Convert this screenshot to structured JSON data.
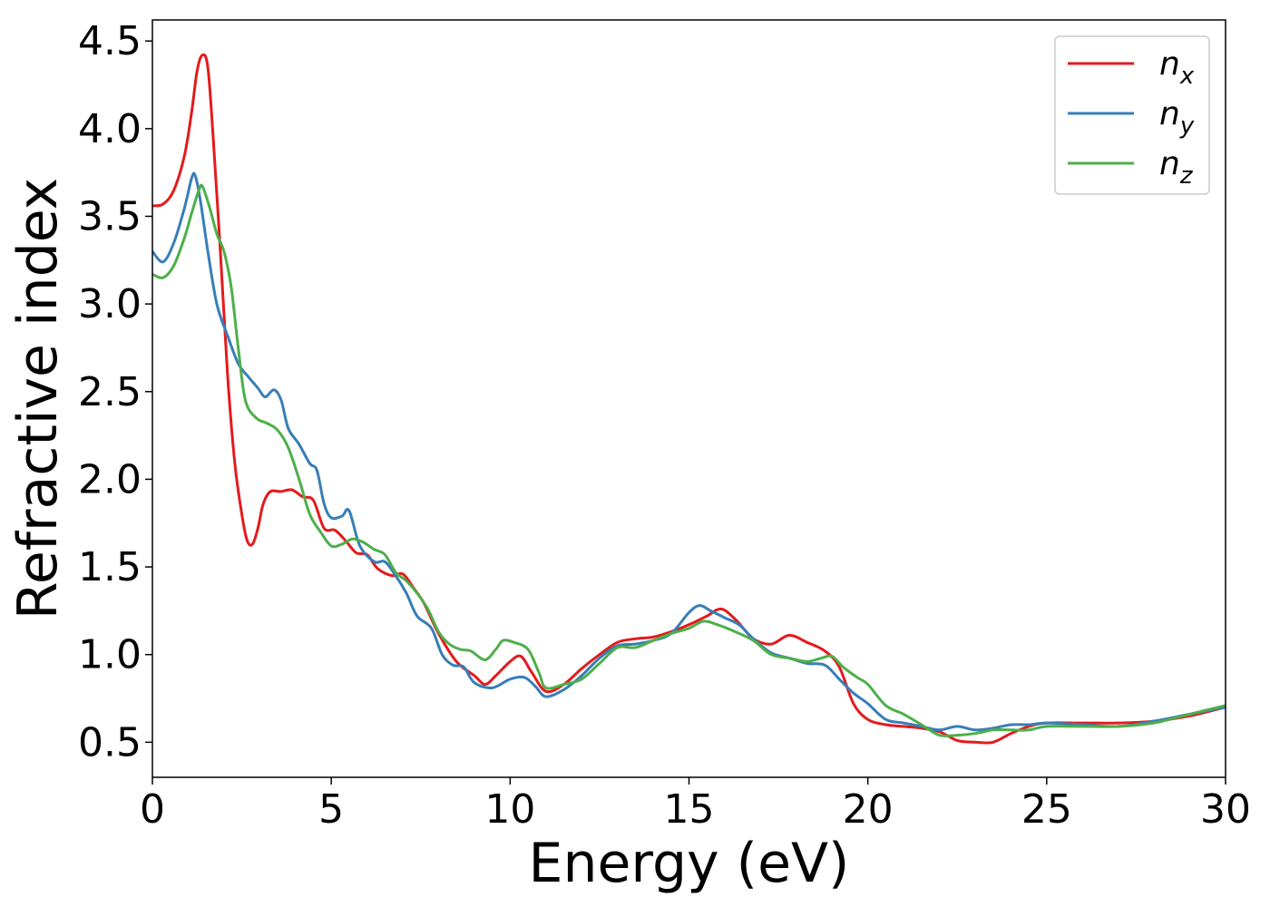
{
  "chart_data": {
    "type": "line",
    "title": "",
    "xlabel": "Energy (eV)",
    "ylabel": "Refractive index",
    "xlim": [
      0,
      30
    ],
    "ylim": [
      0.3,
      4.62
    ],
    "xticks": [
      0,
      5,
      10,
      15,
      20,
      25,
      30
    ],
    "xtick_labels": [
      "0",
      "5",
      "10",
      "15",
      "20",
      "25",
      "30"
    ],
    "yticks": [
      0.5,
      1.0,
      1.5,
      2.0,
      2.5,
      3.0,
      3.5,
      4.0,
      4.5
    ],
    "ytick_labels": [
      "0.5",
      "1.0",
      "1.5",
      "2.0",
      "2.5",
      "3.0",
      "3.5",
      "4.0",
      "4.5"
    ],
    "grid": false,
    "legend": {
      "position": "top-right"
    },
    "series": [
      {
        "name": "n",
        "subscript": "x",
        "color": "#e41a1c",
        "points": [
          [
            0,
            3.56
          ],
          [
            0.3,
            3.57
          ],
          [
            0.6,
            3.65
          ],
          [
            0.9,
            3.85
          ],
          [
            1.1,
            4.1
          ],
          [
            1.25,
            4.33
          ],
          [
            1.4,
            4.42
          ],
          [
            1.55,
            4.35
          ],
          [
            1.7,
            3.95
          ],
          [
            1.9,
            3.3
          ],
          [
            2.1,
            2.6
          ],
          [
            2.3,
            2.1
          ],
          [
            2.5,
            1.8
          ],
          [
            2.65,
            1.65
          ],
          [
            2.8,
            1.63
          ],
          [
            2.95,
            1.72
          ],
          [
            3.1,
            1.86
          ],
          [
            3.3,
            1.93
          ],
          [
            3.6,
            1.93
          ],
          [
            3.9,
            1.94
          ],
          [
            4.2,
            1.9
          ],
          [
            4.5,
            1.88
          ],
          [
            4.8,
            1.72
          ],
          [
            5.1,
            1.71
          ],
          [
            5.4,
            1.65
          ],
          [
            5.7,
            1.58
          ],
          [
            6.0,
            1.57
          ],
          [
            6.3,
            1.49
          ],
          [
            6.7,
            1.45
          ],
          [
            7.0,
            1.46
          ],
          [
            7.3,
            1.38
          ],
          [
            7.6,
            1.29
          ],
          [
            8.0,
            1.12
          ],
          [
            8.5,
            0.96
          ],
          [
            9.0,
            0.88
          ],
          [
            9.3,
            0.83
          ],
          [
            9.6,
            0.88
          ],
          [
            10.0,
            0.96
          ],
          [
            10.3,
            0.99
          ],
          [
            10.6,
            0.9
          ],
          [
            11.0,
            0.79
          ],
          [
            11.5,
            0.83
          ],
          [
            12.0,
            0.92
          ],
          [
            12.5,
            1.0
          ],
          [
            13.0,
            1.07
          ],
          [
            13.5,
            1.09
          ],
          [
            14.0,
            1.1
          ],
          [
            14.5,
            1.13
          ],
          [
            15.0,
            1.17
          ],
          [
            15.5,
            1.22
          ],
          [
            15.9,
            1.26
          ],
          [
            16.3,
            1.2
          ],
          [
            16.8,
            1.09
          ],
          [
            17.3,
            1.06
          ],
          [
            17.8,
            1.11
          ],
          [
            18.3,
            1.07
          ],
          [
            18.8,
            1.02
          ],
          [
            19.2,
            0.93
          ],
          [
            19.6,
            0.72
          ],
          [
            20.0,
            0.63
          ],
          [
            20.5,
            0.6
          ],
          [
            21.0,
            0.59
          ],
          [
            21.5,
            0.58
          ],
          [
            22.0,
            0.56
          ],
          [
            22.5,
            0.51
          ],
          [
            23.0,
            0.5
          ],
          [
            23.5,
            0.5
          ],
          [
            24.0,
            0.55
          ],
          [
            24.5,
            0.59
          ],
          [
            25.0,
            0.61
          ],
          [
            26.0,
            0.61
          ],
          [
            27.0,
            0.61
          ],
          [
            28.0,
            0.62
          ],
          [
            29.0,
            0.65
          ],
          [
            30.0,
            0.7
          ]
        ]
      },
      {
        "name": "n",
        "subscript": "y",
        "color": "#377eb8",
        "points": [
          [
            0,
            3.3
          ],
          [
            0.3,
            3.24
          ],
          [
            0.6,
            3.35
          ],
          [
            0.9,
            3.55
          ],
          [
            1.1,
            3.72
          ],
          [
            1.2,
            3.73
          ],
          [
            1.35,
            3.58
          ],
          [
            1.55,
            3.3
          ],
          [
            1.8,
            3.0
          ],
          [
            2.1,
            2.82
          ],
          [
            2.4,
            2.66
          ],
          [
            2.7,
            2.58
          ],
          [
            2.95,
            2.52
          ],
          [
            3.15,
            2.47
          ],
          [
            3.4,
            2.51
          ],
          [
            3.6,
            2.45
          ],
          [
            3.8,
            2.29
          ],
          [
            4.1,
            2.2
          ],
          [
            4.4,
            2.09
          ],
          [
            4.6,
            2.05
          ],
          [
            4.8,
            1.86
          ],
          [
            5.0,
            1.78
          ],
          [
            5.3,
            1.79
          ],
          [
            5.5,
            1.82
          ],
          [
            5.8,
            1.62
          ],
          [
            6.2,
            1.53
          ],
          [
            6.5,
            1.53
          ],
          [
            6.8,
            1.45
          ],
          [
            7.1,
            1.35
          ],
          [
            7.4,
            1.22
          ],
          [
            7.8,
            1.15
          ],
          [
            8.1,
            1.0
          ],
          [
            8.4,
            0.94
          ],
          [
            8.7,
            0.93
          ],
          [
            9.0,
            0.84
          ],
          [
            9.5,
            0.81
          ],
          [
            10.0,
            0.86
          ],
          [
            10.4,
            0.87
          ],
          [
            10.7,
            0.82
          ],
          [
            11.0,
            0.76
          ],
          [
            11.5,
            0.8
          ],
          [
            12.0,
            0.88
          ],
          [
            12.5,
            0.98
          ],
          [
            13.0,
            1.05
          ],
          [
            13.5,
            1.06
          ],
          [
            14.0,
            1.08
          ],
          [
            14.5,
            1.12
          ],
          [
            15.0,
            1.24
          ],
          [
            15.3,
            1.28
          ],
          [
            15.6,
            1.25
          ],
          [
            16.0,
            1.21
          ],
          [
            16.4,
            1.17
          ],
          [
            16.8,
            1.09
          ],
          [
            17.3,
            1.01
          ],
          [
            17.8,
            0.98
          ],
          [
            18.3,
            0.95
          ],
          [
            18.8,
            0.94
          ],
          [
            19.2,
            0.86
          ],
          [
            19.6,
            0.78
          ],
          [
            20.0,
            0.72
          ],
          [
            20.5,
            0.63
          ],
          [
            21.0,
            0.61
          ],
          [
            21.5,
            0.59
          ],
          [
            22.0,
            0.57
          ],
          [
            22.5,
            0.59
          ],
          [
            23.0,
            0.57
          ],
          [
            23.5,
            0.58
          ],
          [
            24.0,
            0.6
          ],
          [
            24.5,
            0.6
          ],
          [
            25.0,
            0.61
          ],
          [
            26.0,
            0.6
          ],
          [
            27.0,
            0.59
          ],
          [
            28.0,
            0.62
          ],
          [
            29.0,
            0.66
          ],
          [
            30.0,
            0.7
          ]
        ]
      },
      {
        "name": "n",
        "subscript": "z",
        "color": "#4daf4a",
        "points": [
          [
            0,
            3.17
          ],
          [
            0.3,
            3.15
          ],
          [
            0.6,
            3.22
          ],
          [
            0.9,
            3.38
          ],
          [
            1.1,
            3.52
          ],
          [
            1.3,
            3.65
          ],
          [
            1.4,
            3.67
          ],
          [
            1.6,
            3.55
          ],
          [
            1.8,
            3.4
          ],
          [
            2.0,
            3.3
          ],
          [
            2.2,
            3.1
          ],
          [
            2.4,
            2.75
          ],
          [
            2.6,
            2.45
          ],
          [
            2.9,
            2.35
          ],
          [
            3.2,
            2.32
          ],
          [
            3.5,
            2.28
          ],
          [
            3.8,
            2.18
          ],
          [
            4.1,
            2.0
          ],
          [
            4.4,
            1.8
          ],
          [
            4.7,
            1.7
          ],
          [
            5.0,
            1.62
          ],
          [
            5.3,
            1.63
          ],
          [
            5.6,
            1.66
          ],
          [
            5.9,
            1.64
          ],
          [
            6.2,
            1.6
          ],
          [
            6.5,
            1.57
          ],
          [
            6.8,
            1.47
          ],
          [
            7.1,
            1.42
          ],
          [
            7.4,
            1.35
          ],
          [
            7.7,
            1.26
          ],
          [
            8.0,
            1.13
          ],
          [
            8.3,
            1.06
          ],
          [
            8.6,
            1.03
          ],
          [
            8.9,
            1.02
          ],
          [
            9.3,
            0.97
          ],
          [
            9.6,
            1.03
          ],
          [
            9.8,
            1.08
          ],
          [
            10.1,
            1.07
          ],
          [
            10.5,
            1.03
          ],
          [
            10.8,
            0.9
          ],
          [
            11.0,
            0.81
          ],
          [
            11.5,
            0.83
          ],
          [
            12.0,
            0.86
          ],
          [
            12.5,
            0.95
          ],
          [
            13.0,
            1.04
          ],
          [
            13.5,
            1.04
          ],
          [
            14.0,
            1.08
          ],
          [
            14.5,
            1.12
          ],
          [
            15.0,
            1.15
          ],
          [
            15.4,
            1.19
          ],
          [
            15.8,
            1.17
          ],
          [
            16.3,
            1.13
          ],
          [
            16.8,
            1.08
          ],
          [
            17.3,
            1.0
          ],
          [
            17.8,
            0.98
          ],
          [
            18.3,
            0.96
          ],
          [
            18.7,
            0.98
          ],
          [
            19.0,
            0.99
          ],
          [
            19.3,
            0.93
          ],
          [
            19.7,
            0.87
          ],
          [
            20.0,
            0.83
          ],
          [
            20.5,
            0.71
          ],
          [
            21.0,
            0.66
          ],
          [
            21.5,
            0.6
          ],
          [
            22.0,
            0.54
          ],
          [
            22.5,
            0.54
          ],
          [
            23.0,
            0.55
          ],
          [
            23.5,
            0.57
          ],
          [
            24.0,
            0.57
          ],
          [
            24.5,
            0.57
          ],
          [
            25.0,
            0.59
          ],
          [
            26.0,
            0.59
          ],
          [
            27.0,
            0.59
          ],
          [
            28.0,
            0.61
          ],
          [
            29.0,
            0.66
          ],
          [
            30.0,
            0.71
          ]
        ]
      }
    ]
  }
}
